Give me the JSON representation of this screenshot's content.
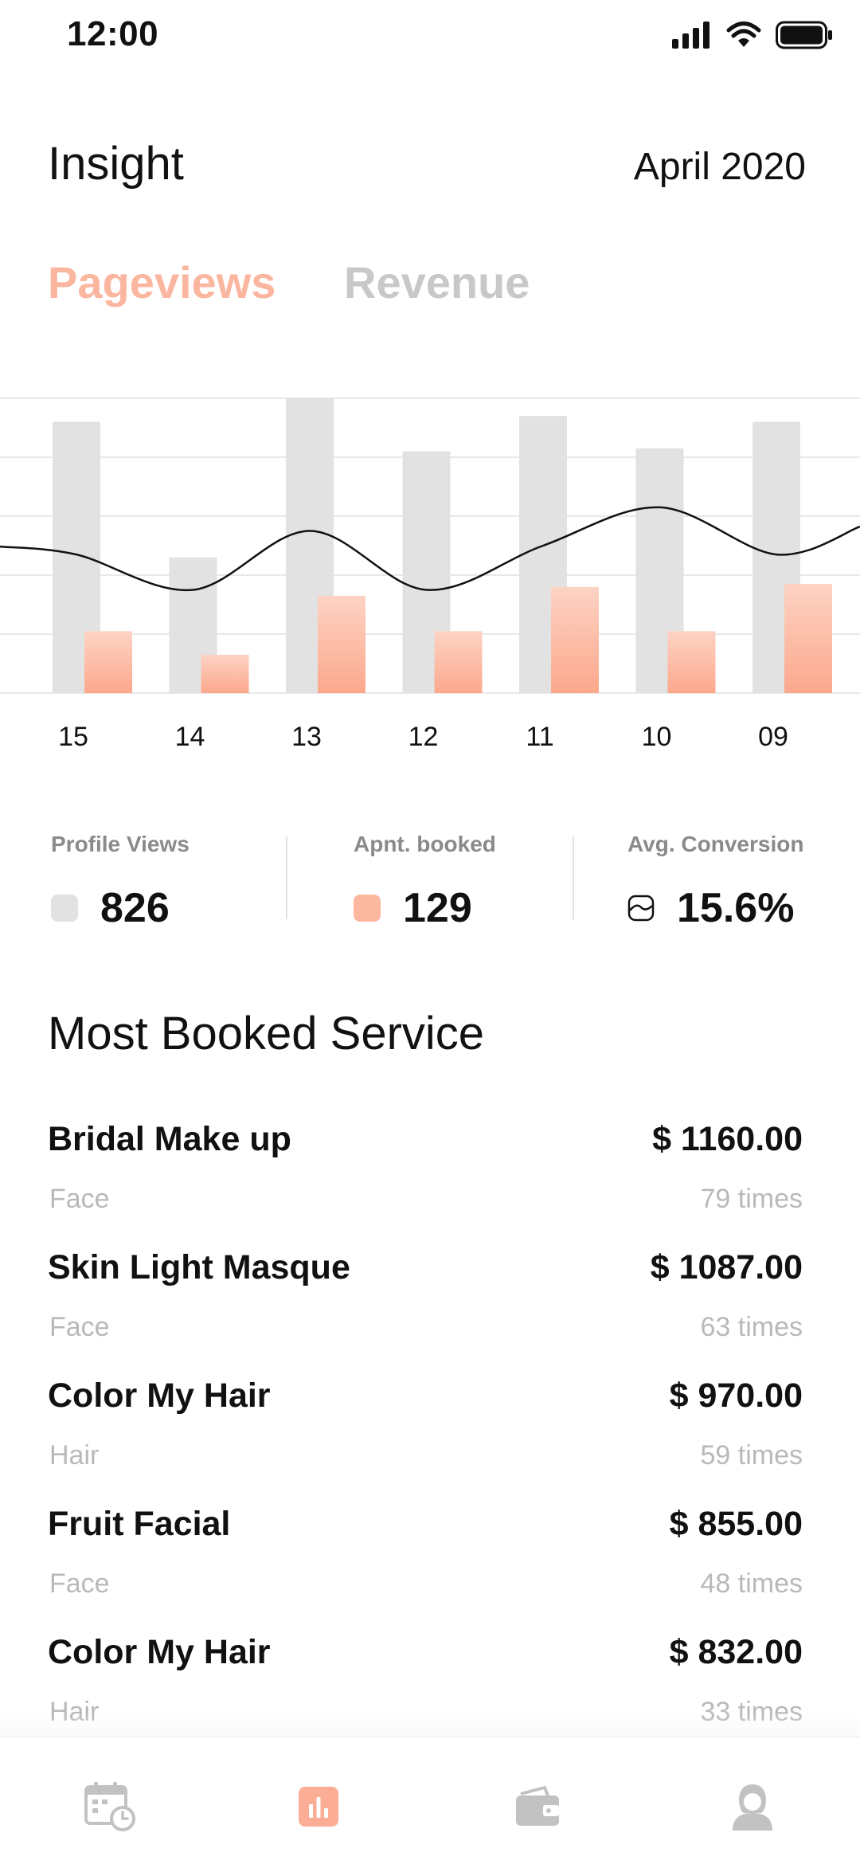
{
  "status_bar": {
    "time": "12:00"
  },
  "header": {
    "title": "Insight",
    "month": "April 2020"
  },
  "tabs": [
    {
      "label": "Pageviews",
      "active": true
    },
    {
      "label": "Revenue",
      "active": false
    }
  ],
  "colors": {
    "accent": "#fbb6a0",
    "accent_dark": "#fda98e",
    "bar_gray": "#e2e2e2",
    "muted_text": "#b9b9b9"
  },
  "chart_data": {
    "type": "bar",
    "categories": [
      "15",
      "14",
      "13",
      "12",
      "11",
      "10",
      "09"
    ],
    "ylim": [
      0,
      100
    ],
    "grid": true,
    "series": [
      {
        "name": "Profile Views",
        "color": "#e2e2e2",
        "values": [
          92,
          46,
          100,
          82,
          94,
          83,
          92
        ]
      },
      {
        "name": "Apnt. booked",
        "color": "#fdb39c",
        "values": [
          21,
          13,
          33,
          21,
          36,
          21,
          37
        ]
      },
      {
        "name": "Avg. Conversion",
        "type": "line",
        "color": "#111111",
        "values": [
          47,
          35,
          55,
          35,
          50,
          63,
          47
        ]
      }
    ]
  },
  "stats": [
    {
      "label": "Profile Views",
      "value": "826",
      "icon": "gray-square-icon"
    },
    {
      "label": "Apnt. booked",
      "value": "129",
      "icon": "peach-square-icon"
    },
    {
      "label": "Avg. Conversion",
      "value": "15.6%",
      "icon": "line-legend-icon"
    }
  ],
  "most_booked": {
    "title": "Most Booked Service",
    "items": [
      {
        "name": "Bridal Make up",
        "category": "Face",
        "price": "$ 1160.00",
        "count": "79 times"
      },
      {
        "name": "Skin Light Masque",
        "category": "Face",
        "price": "$ 1087.00",
        "count": "63 times"
      },
      {
        "name": "Color My Hair",
        "category": "Hair",
        "price": "$ 970.00",
        "count": "59 times"
      },
      {
        "name": "Fruit Facial",
        "category": "Face",
        "price": "$ 855.00",
        "count": "48 times"
      },
      {
        "name": "Color My Hair",
        "category": "Hair",
        "price": "$ 832.00",
        "count": "33 times"
      }
    ]
  },
  "bottom_nav": [
    {
      "icon": "calendar-clock-icon",
      "active": false
    },
    {
      "icon": "bar-chart-icon",
      "active": true
    },
    {
      "icon": "wallet-icon",
      "active": false
    },
    {
      "icon": "user-icon",
      "active": false
    }
  ]
}
